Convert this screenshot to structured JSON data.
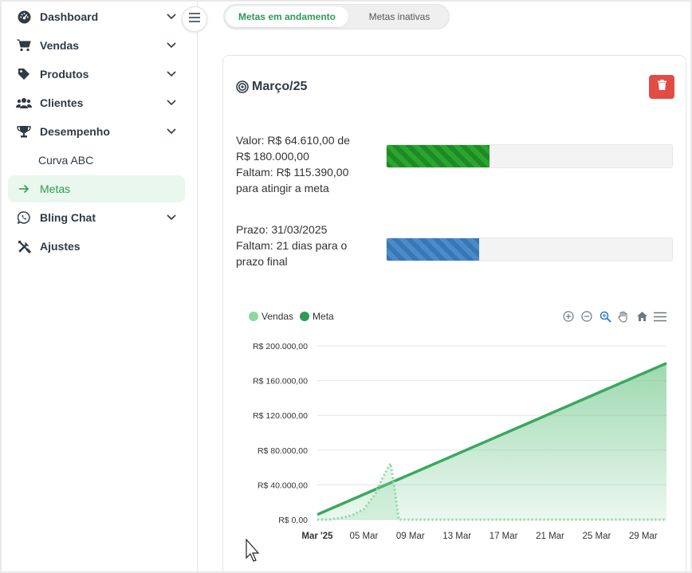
{
  "sidebar": {
    "items": [
      {
        "label": "Dashboard",
        "icon": "gauge-icon"
      },
      {
        "label": "Vendas",
        "icon": "cart-icon"
      },
      {
        "label": "Produtos",
        "icon": "tag-icon"
      },
      {
        "label": "Clientes",
        "icon": "users-icon"
      },
      {
        "label": "Desempenho",
        "icon": "trophy-icon"
      },
      {
        "label": "Curva ABC"
      },
      {
        "label": "Metas",
        "icon": "arrow-right-icon"
      },
      {
        "label": "Bling Chat",
        "icon": "whatsapp-icon"
      },
      {
        "label": "Ajustes",
        "icon": "tools-icon"
      }
    ]
  },
  "tabs": {
    "active": "Metas em andamento",
    "inactive": "Metas inativas"
  },
  "goal": {
    "title": "Março/25",
    "valor_line": "Valor: R$ 64.610,00 de R$ 180.000,00",
    "faltam_line": "Faltam: R$ 115.390,00 para atingir a meta",
    "progress_value": 0.359,
    "prazo_line": "Prazo: 31/03/2025",
    "faltam_dias_line": "Faltam: 21 dias para o prazo final",
    "deadline_progress": 0.323
  },
  "colors": {
    "accent": "#2e9a55",
    "danger": "#e24c45",
    "meta_line": "#3aa85c",
    "vendas_line": "#8fd6a5"
  },
  "chart_data": {
    "type": "area",
    "legend": [
      "Vendas",
      "Meta"
    ],
    "x_ticks": [
      "Mar '25",
      "05 Mar",
      "09 Mar",
      "13 Mar",
      "17 Mar",
      "21 Mar",
      "25 Mar",
      "29 Mar"
    ],
    "y_ticks": [
      "R$ 0,00",
      "R$ 40.000,00",
      "R$ 80.000,00",
      "R$ 120.000,00",
      "R$ 160.000,00",
      "R$ 200.000,00"
    ],
    "ylim": [
      0,
      200000
    ],
    "xlim": [
      1,
      31
    ],
    "series": [
      {
        "name": "Meta",
        "x": [
          1,
          31
        ],
        "values": [
          5806,
          180000
        ]
      },
      {
        "name": "Vendas",
        "x": [
          1,
          2,
          3,
          4,
          5,
          6,
          6.5,
          7,
          7.3,
          7.6,
          8,
          8.5,
          9,
          31
        ],
        "values": [
          0,
          0,
          2000,
          5000,
          12000,
          30000,
          45000,
          58000,
          64610,
          40000,
          0,
          0,
          0,
          0
        ]
      }
    ]
  }
}
